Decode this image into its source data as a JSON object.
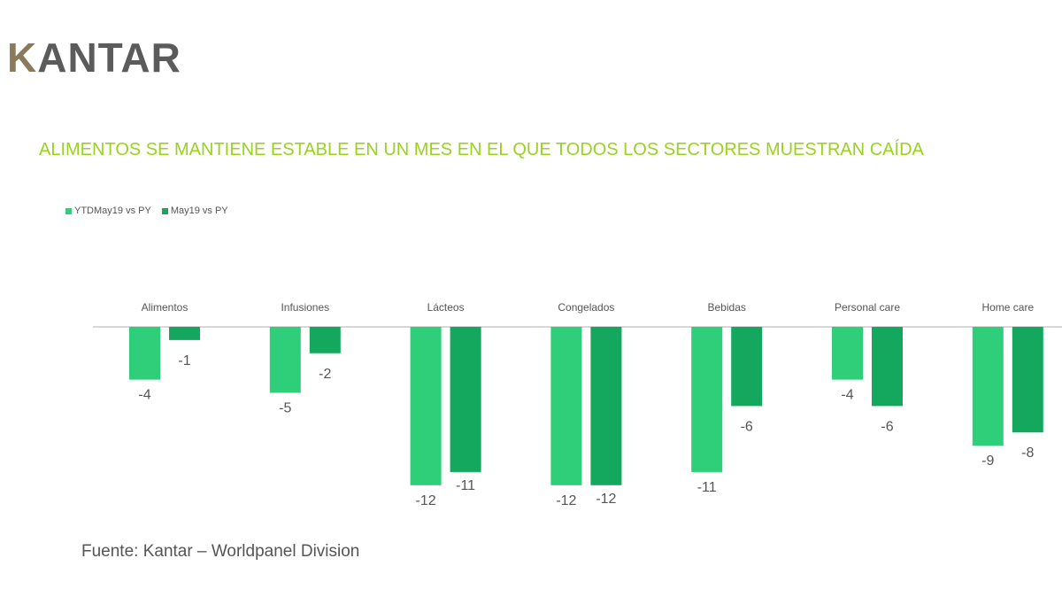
{
  "logo": "KANTAR",
  "title": "ALIMENTOS SE MANTIENE ESTABLE EN UN MES EN EL QUE TODOS LOS SECTORES MUESTRAN CAÍDA",
  "source": "Fuente: Kantar – Worldpanel Division",
  "chart_data": {
    "type": "bar",
    "categories": [
      "Alimentos",
      "Infusiones",
      "Lácteos",
      "Congelados",
      "Bebidas",
      "Personal care",
      "Home care"
    ],
    "series": [
      {
        "name": "YTDMay19 vs PY",
        "color": "#2ecf78",
        "values": [
          -4,
          -5,
          -12,
          -12,
          -11,
          -4,
          -9
        ]
      },
      {
        "name": "May19 vs PY",
        "color": "#14a85e",
        "values": [
          -1,
          -2,
          -11,
          -12,
          -6,
          -6,
          -8
        ]
      }
    ],
    "ylim": [
      -12,
      0
    ],
    "legend": "top-left",
    "grid": false
  }
}
